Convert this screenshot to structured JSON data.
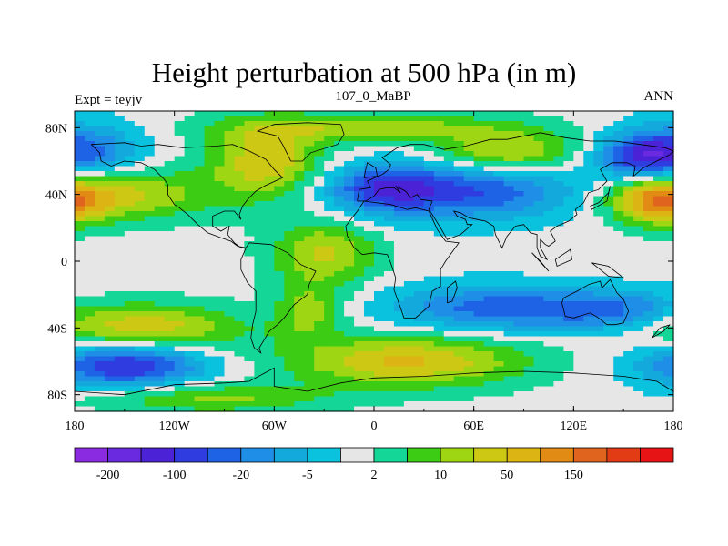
{
  "plot": {
    "title": "Height perturbation at 500 hPa (in m)",
    "left_label": "Expt = teyjv",
    "center_label": "107_0_MaBP",
    "right_label": "ANN"
  },
  "colors": {
    "frame": "#000000",
    "background": "#ffffff",
    "coastline": "#000000"
  },
  "chart_data": {
    "type": "filled-contour-map",
    "title": "Height perturbation at 500 hPa (in m)",
    "subtitle_left": "Expt = teyjv",
    "subtitle_center": "107_0_MaBP",
    "subtitle_right": "ANN",
    "x_range": [
      -180,
      180
    ],
    "y_range": [
      -90,
      90
    ],
    "x_ticks": [
      {
        "value": -180,
        "label": "180"
      },
      {
        "value": -120,
        "label": "120W"
      },
      {
        "value": -60,
        "label": "60W"
      },
      {
        "value": 0,
        "label": "0"
      },
      {
        "value": 60,
        "label": "60E"
      },
      {
        "value": 120,
        "label": "120E"
      },
      {
        "value": 180,
        "label": "180"
      }
    ],
    "y_ticks": [
      {
        "value": 80,
        "label": "80N"
      },
      {
        "value": 40,
        "label": "40N"
      },
      {
        "value": 0,
        "label": "0"
      },
      {
        "value": -40,
        "label": "40S"
      },
      {
        "value": -80,
        "label": "80S"
      }
    ],
    "colorbar": {
      "colors": [
        "#8a2be2",
        "#6a2ae0",
        "#4b22d6",
        "#2f3de0",
        "#1e62e6",
        "#1e8ee6",
        "#14a9dc",
        "#0bc2de",
        "#e6e6e6",
        "#14d696",
        "#3ccc14",
        "#9ed614",
        "#ccc814",
        "#dcb414",
        "#e18a14",
        "#e0641e",
        "#e13c14",
        "#e61414"
      ],
      "labels": [
        {
          "boundary": 1,
          "text": "-200"
        },
        {
          "boundary": 3,
          "text": "-100"
        },
        {
          "boundary": 5,
          "text": "-20"
        },
        {
          "boundary": 7,
          "text": "-5"
        },
        {
          "boundary": 9,
          "text": "2"
        },
        {
          "boundary": 11,
          "text": "10"
        },
        {
          "boundary": 13,
          "text": "50"
        },
        {
          "boundary": 15,
          "text": "150"
        }
      ]
    },
    "field_features": [
      {
        "lon": -180,
        "lat": 65,
        "amp": -3.6,
        "slon": 26,
        "slat": 12
      },
      {
        "lon": 180,
        "lat": 65,
        "amp": -3.6,
        "slon": 26,
        "slat": 12
      },
      {
        "lon": -150,
        "lat": -62,
        "amp": -4.4,
        "slon": 34,
        "slat": 10
      },
      {
        "lon": 210,
        "lat": -62,
        "amp": -4.4,
        "slon": 34,
        "slat": 10
      },
      {
        "lon": 55,
        "lat": 42,
        "amp": -3.6,
        "slon": 50,
        "slat": 12
      },
      {
        "lon": 5,
        "lat": 44,
        "amp": -2.6,
        "slon": 22,
        "slat": 10
      },
      {
        "lon": 160,
        "lat": 62,
        "amp": -2.6,
        "slon": 18,
        "slat": 9
      },
      {
        "lon": 70,
        "lat": -28,
        "amp": -3.0,
        "slon": 42,
        "slat": 10
      },
      {
        "lon": 150,
        "lat": -30,
        "amp": -2.8,
        "slon": 35,
        "slat": 9
      },
      {
        "lon": -160,
        "lat": 40,
        "amp": 3.2,
        "slon": 42,
        "slat": 11
      },
      {
        "lon": 200,
        "lat": 40,
        "amp": 3.2,
        "slon": 42,
        "slat": 11
      },
      {
        "lon": -65,
        "lat": 60,
        "amp": 3.4,
        "slon": 24,
        "slat": 16
      },
      {
        "lon": 80,
        "lat": 65,
        "amp": 3.0,
        "slon": 30,
        "slat": 9
      },
      {
        "lon": 170,
        "lat": 36,
        "amp": 3.4,
        "slon": 18,
        "slat": 10
      },
      {
        "lon": -190,
        "lat": 36,
        "amp": 3.4,
        "slon": 18,
        "slat": 10
      },
      {
        "lon": -140,
        "lat": -40,
        "amp": 3.4,
        "slon": 42,
        "slat": 10
      },
      {
        "lon": 220,
        "lat": -40,
        "amp": 3.4,
        "slon": 42,
        "slat": 10
      },
      {
        "lon": 20,
        "lat": -60,
        "amp": 3.6,
        "slon": 50,
        "slat": 11
      },
      {
        "lon": -30,
        "lat": 5,
        "amp": 2.8,
        "slon": 22,
        "slat": 14
      },
      {
        "lon": -40,
        "lat": -30,
        "amp": 2.2,
        "slon": 14,
        "slat": 12
      },
      {
        "lon": -100,
        "lat": -82,
        "amp": 2.2,
        "slon": 50,
        "slat": 6
      },
      {
        "lon": 0,
        "lat": 80,
        "amp": 2.4,
        "slon": 60,
        "slat": 6
      }
    ],
    "coastlines": [
      [
        [
          -170,
          70
        ],
        [
          -150,
          71
        ],
        [
          -140,
          69
        ],
        [
          -130,
          70
        ],
        [
          -115,
          68
        ],
        [
          -95,
          69
        ],
        [
          -85,
          70
        ],
        [
          -75,
          66
        ],
        [
          -65,
          61
        ],
        [
          -60,
          55
        ],
        [
          -55,
          50
        ],
        [
          -66,
          45
        ],
        [
          -71,
          42
        ],
        [
          -76,
          37
        ],
        [
          -79,
          33
        ],
        [
          -81,
          28
        ],
        [
          -80,
          25
        ],
        [
          -84,
          30
        ],
        [
          -90,
          30
        ],
        [
          -97,
          27
        ],
        [
          -97,
          21
        ],
        [
          -92,
          18
        ],
        [
          -87,
          21
        ],
        [
          -88,
          16
        ],
        [
          -84,
          11
        ],
        [
          -80,
          8
        ],
        [
          -77,
          8
        ],
        [
          -82,
          9
        ],
        [
          -86,
          12
        ],
        [
          -92,
          14
        ],
        [
          -100,
          17
        ],
        [
          -106,
          22
        ],
        [
          -112,
          28
        ],
        [
          -117,
          32
        ],
        [
          -120,
          34
        ],
        [
          -124,
          40
        ],
        [
          -124,
          46
        ],
        [
          -126,
          49
        ],
        [
          -132,
          55
        ],
        [
          -140,
          59
        ],
        [
          -150,
          60
        ],
        [
          -158,
          57
        ],
        [
          -164,
          60
        ],
        [
          -165,
          65
        ],
        [
          -170,
          70
        ]
      ],
      [
        [
          -75,
          11
        ],
        [
          -62,
          10
        ],
        [
          -52,
          5
        ],
        [
          -44,
          -2
        ],
        [
          -35,
          -6
        ],
        [
          -39,
          -14
        ],
        [
          -40,
          -20
        ],
        [
          -48,
          -26
        ],
        [
          -54,
          -34
        ],
        [
          -58,
          -38
        ],
        [
          -63,
          -42
        ],
        [
          -66,
          -47
        ],
        [
          -69,
          -52
        ],
        [
          -68,
          -55
        ],
        [
          -72,
          -52
        ],
        [
          -74,
          -46
        ],
        [
          -73,
          -38
        ],
        [
          -71,
          -30
        ],
        [
          -71,
          -18
        ],
        [
          -76,
          -13
        ],
        [
          -80,
          -5
        ],
        [
          -80,
          1
        ],
        [
          -77,
          8
        ],
        [
          -75,
          11
        ]
      ],
      [
        [
          -50,
          60
        ],
        [
          -43,
          60
        ],
        [
          -38,
          65
        ],
        [
          -22,
          70
        ],
        [
          -18,
          76
        ],
        [
          -20,
          82
        ],
        [
          -40,
          83
        ],
        [
          -60,
          82
        ],
        [
          -70,
          78
        ],
        [
          -58,
          75
        ],
        [
          -55,
          70
        ],
        [
          -52,
          64
        ],
        [
          -50,
          60
        ]
      ],
      [
        [
          -10,
          36
        ],
        [
          -9,
          43
        ],
        [
          -2,
          44
        ],
        [
          -4,
          48
        ],
        [
          5,
          52
        ],
        [
          9,
          55
        ],
        [
          10,
          58
        ],
        [
          5,
          62
        ],
        [
          14,
          68
        ],
        [
          22,
          70
        ],
        [
          30,
          70
        ],
        [
          42,
          67
        ],
        [
          55,
          69
        ],
        [
          70,
          73
        ],
        [
          80,
          73
        ],
        [
          100,
          77
        ],
        [
          115,
          74
        ],
        [
          130,
          72
        ],
        [
          145,
          72
        ],
        [
          160,
          70
        ],
        [
          175,
          68
        ],
        [
          180,
          66
        ],
        [
          178,
          64
        ],
        [
          170,
          60
        ],
        [
          162,
          56
        ],
        [
          156,
          51
        ],
        [
          157,
          57
        ],
        [
          152,
          59
        ],
        [
          143,
          59
        ],
        [
          136,
          55
        ],
        [
          140,
          48
        ],
        [
          135,
          43
        ],
        [
          129,
          41
        ],
        [
          127,
          37
        ],
        [
          126,
          35
        ],
        [
          121,
          31
        ],
        [
          122,
          28
        ],
        [
          117,
          24
        ],
        [
          110,
          21
        ],
        [
          106,
          18
        ],
        [
          109,
          12
        ],
        [
          105,
          9
        ],
        [
          103,
          10
        ],
        [
          100,
          13
        ],
        [
          100,
          8
        ],
        [
          104,
          1
        ],
        [
          100,
          3
        ],
        [
          98,
          8
        ],
        [
          98,
          16
        ],
        [
          94,
          17
        ],
        [
          90,
          22
        ],
        [
          85,
          21
        ],
        [
          80,
          15
        ],
        [
          77,
          8
        ],
        [
          73,
          16
        ],
        [
          72,
          21
        ],
        [
          67,
          24
        ],
        [
          62,
          25
        ],
        [
          57,
          26
        ],
        [
          52,
          29
        ],
        [
          48,
          30
        ],
        [
          50,
          27
        ],
        [
          55,
          25
        ],
        [
          56,
          22
        ],
        [
          59,
          22
        ],
        [
          52,
          16
        ],
        [
          44,
          13
        ],
        [
          40,
          20
        ],
        [
          35,
          28
        ],
        [
          33,
          31
        ],
        [
          35,
          36
        ],
        [
          28,
          37
        ],
        [
          26,
          40
        ],
        [
          22,
          38
        ],
        [
          19,
          42
        ],
        [
          13,
          45
        ],
        [
          16,
          41
        ],
        [
          12,
          44
        ],
        [
          8,
          44
        ],
        [
          3,
          43
        ],
        [
          0,
          39
        ],
        [
          -5,
          36
        ],
        [
          -10,
          36
        ]
      ],
      [
        [
          -17,
          21
        ],
        [
          -16,
          15
        ],
        [
          -12,
          8
        ],
        [
          -7,
          4
        ],
        [
          0,
          5
        ],
        [
          8,
          4
        ],
        [
          10,
          -1
        ],
        [
          13,
          -10
        ],
        [
          12,
          -17
        ],
        [
          16,
          -28
        ],
        [
          18,
          -34
        ],
        [
          25,
          -34
        ],
        [
          33,
          -27
        ],
        [
          35,
          -18
        ],
        [
          40,
          -15
        ],
        [
          40,
          -5
        ],
        [
          43,
          0
        ],
        [
          51,
          11
        ],
        [
          43,
          12
        ],
        [
          38,
          19
        ],
        [
          33,
          30
        ],
        [
          25,
          32
        ],
        [
          20,
          31
        ],
        [
          10,
          34
        ],
        [
          -6,
          36
        ],
        [
          -10,
          30
        ],
        [
          -17,
          21
        ]
      ],
      [
        [
          114,
          -22
        ],
        [
          122,
          -18
        ],
        [
          129,
          -14
        ],
        [
          136,
          -12
        ],
        [
          137,
          -16
        ],
        [
          142,
          -11
        ],
        [
          146,
          -19
        ],
        [
          150,
          -23
        ],
        [
          153,
          -30
        ],
        [
          150,
          -37
        ],
        [
          145,
          -38
        ],
        [
          140,
          -38
        ],
        [
          135,
          -34
        ],
        [
          130,
          -31
        ],
        [
          120,
          -34
        ],
        [
          115,
          -33
        ],
        [
          113,
          -25
        ],
        [
          114,
          -22
        ]
      ],
      [
        [
          -180,
          -78
        ],
        [
          -150,
          -80
        ],
        [
          -120,
          -74
        ],
        [
          -90,
          -73
        ],
        [
          -75,
          -72
        ],
        [
          -60,
          -64
        ],
        [
          -60,
          -75
        ],
        [
          -40,
          -78
        ],
        [
          -20,
          -73
        ],
        [
          0,
          -70
        ],
        [
          30,
          -69
        ],
        [
          60,
          -67
        ],
        [
          90,
          -66
        ],
        [
          120,
          -67
        ],
        [
          150,
          -69
        ],
        [
          170,
          -72
        ],
        [
          180,
          -78
        ]
      ],
      [
        [
          44,
          -25
        ],
        [
          47,
          -24
        ],
        [
          50,
          -16
        ],
        [
          49,
          -12
        ],
        [
          44,
          -16
        ],
        [
          44,
          -25
        ]
      ],
      [
        [
          -6,
          50
        ],
        [
          2,
          51
        ],
        [
          1,
          56
        ],
        [
          -4,
          59
        ],
        [
          -5,
          55
        ],
        [
          -6,
          50
        ]
      ],
      [
        [
          130,
          33
        ],
        [
          135,
          35
        ],
        [
          141,
          41
        ],
        [
          142,
          45
        ],
        [
          140,
          36
        ],
        [
          131,
          31
        ],
        [
          130,
          33
        ]
      ],
      [
        [
          95,
          5
        ],
        [
          105,
          -6
        ],
        [
          100,
          0
        ],
        [
          95,
          5
        ]
      ],
      [
        [
          109,
          1
        ],
        [
          118,
          7
        ],
        [
          119,
          1
        ],
        [
          110,
          -3
        ],
        [
          109,
          1
        ]
      ],
      [
        [
          131,
          -1
        ],
        [
          141,
          -3
        ],
        [
          150,
          -10
        ],
        [
          141,
          -9
        ],
        [
          131,
          -1
        ]
      ],
      [
        [
          172,
          -40
        ],
        [
          178,
          -38
        ],
        [
          174,
          -42
        ],
        [
          167,
          -46
        ],
        [
          172,
          -40
        ]
      ]
    ]
  }
}
